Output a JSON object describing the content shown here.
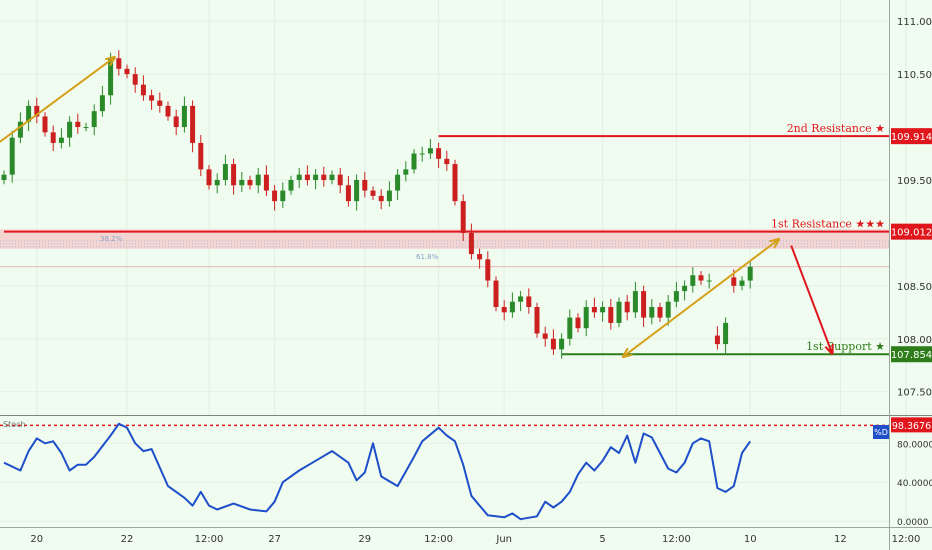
{
  "chart_data": [
    {
      "type": "candlestick",
      "y_axis": {
        "range": [
          107.28,
          111.2
        ],
        "ticks": [
          {
            "value": 111.0,
            "label": "111.000"
          },
          {
            "value": 110.5,
            "label": "110.500"
          },
          {
            "value": 109.5,
            "label": "109.500"
          },
          {
            "value": 108.5,
            "label": "108.500"
          },
          {
            "value": 108.0,
            "label": "108.000"
          },
          {
            "value": 107.5,
            "label": "107.500"
          }
        ]
      },
      "x_axis": {
        "ticks": [
          {
            "i": 4,
            "label": "20"
          },
          {
            "i": 15,
            "label": "22"
          },
          {
            "i": 25,
            "label": "12:00"
          },
          {
            "i": 33,
            "label": "27"
          },
          {
            "i": 44,
            "label": "29"
          },
          {
            "i": 53,
            "label": "12:00"
          },
          {
            "i": 61,
            "label": "Jun"
          },
          {
            "i": 73,
            "label": "5"
          },
          {
            "i": 82,
            "label": "12:00"
          },
          {
            "i": 91,
            "label": "10"
          },
          {
            "i": 102,
            "label": "12"
          },
          {
            "i": 110,
            "label": "12:00"
          }
        ]
      },
      "series": [
        {
          "close": [
            109.55,
            109.9,
            110.05,
            110.2,
            110.1,
            109.95,
            109.85,
            109.9,
            110.05,
            110.0,
            110.0,
            110.15,
            110.3,
            110.65,
            110.55,
            110.5,
            110.4,
            110.3,
            110.25,
            110.2,
            110.1,
            110.0,
            110.2,
            109.85,
            109.6,
            109.45,
            109.5,
            109.65,
            109.45,
            109.5,
            109.45,
            109.55,
            109.4,
            109.3,
            109.4,
            109.5,
            109.55,
            109.5,
            109.55,
            109.5,
            109.55,
            109.45,
            109.3,
            109.5,
            109.4,
            109.35,
            109.3,
            109.4,
            109.55,
            109.6,
            109.75,
            109.75,
            109.8,
            109.7,
            109.65,
            109.3,
            109.0,
            108.8,
            108.75,
            108.55,
            108.3,
            108.25,
            108.35,
            108.4,
            108.3,
            108.05,
            108.0,
            107.9,
            108.0,
            108.2,
            108.1,
            108.3,
            108.25,
            108.3,
            108.15,
            108.35,
            108.25,
            108.45,
            108.2,
            108.3,
            108.2,
            108.35,
            108.45,
            108.5,
            108.6,
            108.55,
            108.55,
            107.95,
            108.15,
            108.5,
            108.55,
            108.68
          ],
          "gaps_after": [
            86,
            88
          ]
        }
      ],
      "price_lines": [
        {
          "name": "2nd Resistance ★",
          "value": 109.914,
          "label": "109.914",
          "color": "#e0161d",
          "from_i": 53
        },
        {
          "name": "1st Resistance ★★★",
          "value": 109.012,
          "label": "109.012",
          "color": "#e0161d",
          "from_i": 0
        },
        {
          "name": "1st Support ★",
          "value": 107.854,
          "label": "107.854",
          "color": "#2e7d1a",
          "from_i": 68
        }
      ],
      "resistance_zone": [
        108.85,
        109.035
      ],
      "annotations": {
        "fib_labels": [
          "38.2%",
          "61.8%"
        ],
        "arrows": [
          {
            "color": "#d4a017",
            "from": [
              -0.5,
              109.86
            ],
            "to": [
              13.5,
              110.66
            ],
            "head": "end"
          },
          {
            "color": "#d4a017",
            "from": [
              75.5,
              107.83
            ],
            "to": [
              94.5,
              108.94
            ],
            "head": "both"
          },
          {
            "color": "#e0161d",
            "from": [
              96,
              108.88
            ],
            "to": [
              101,
              107.86
            ],
            "head": "end"
          }
        ]
      }
    },
    {
      "type": "line",
      "title": "Stoch",
      "y_axis": {
        "range": [
          -6,
          108
        ],
        "ticks": [
          {
            "value": 80,
            "label": "80.0000"
          },
          {
            "value": 40,
            "label": "40.0000"
          },
          {
            "value": 0,
            "label": "0.0000"
          }
        ]
      },
      "level_line": {
        "value": 98.3676,
        "label": "98.3676"
      },
      "legend_badge": "%D",
      "series": [
        {
          "name": "%D",
          "color": "#1e4fc9",
          "points": [
            [
              0,
              60
            ],
            [
              2,
              52
            ],
            [
              3,
              72
            ],
            [
              4,
              85
            ],
            [
              5,
              80
            ],
            [
              6,
              82
            ],
            [
              7,
              70
            ],
            [
              8,
              52
            ],
            [
              9,
              58
            ],
            [
              10,
              58
            ],
            [
              11,
              66
            ],
            [
              13,
              88
            ],
            [
              14,
              100
            ],
            [
              15,
              96
            ],
            [
              16,
              80
            ],
            [
              17,
              72
            ],
            [
              18,
              74
            ],
            [
              20,
              36
            ],
            [
              22,
              24
            ],
            [
              23,
              16
            ],
            [
              24,
              30
            ],
            [
              25,
              16
            ],
            [
              26,
              12
            ],
            [
              28,
              18
            ],
            [
              30,
              12
            ],
            [
              32,
              10
            ],
            [
              33,
              20
            ],
            [
              34,
              40
            ],
            [
              36,
              52
            ],
            [
              38,
              62
            ],
            [
              40,
              72
            ],
            [
              42,
              60
            ],
            [
              43,
              42
            ],
            [
              44,
              50
            ],
            [
              45,
              80
            ],
            [
              46,
              46
            ],
            [
              48,
              36
            ],
            [
              50,
              66
            ],
            [
              51,
              82
            ],
            [
              53,
              96
            ],
            [
              54,
              88
            ],
            [
              55,
              82
            ],
            [
              56,
              58
            ],
            [
              57,
              26
            ],
            [
              58,
              16
            ],
            [
              59,
              6
            ],
            [
              61,
              4
            ],
            [
              62,
              8
            ],
            [
              63,
              2
            ],
            [
              65,
              5
            ],
            [
              66,
              20
            ],
            [
              67,
              14
            ],
            [
              68,
              20
            ],
            [
              69,
              30
            ],
            [
              70,
              48
            ],
            [
              71,
              60
            ],
            [
              72,
              52
            ],
            [
              73,
              62
            ],
            [
              74,
              76
            ],
            [
              75,
              70
            ],
            [
              76,
              88
            ],
            [
              77,
              60
            ],
            [
              78,
              90
            ],
            [
              79,
              86
            ],
            [
              81,
              54
            ],
            [
              82,
              50
            ],
            [
              83,
              60
            ],
            [
              84,
              80
            ],
            [
              85,
              85
            ],
            [
              86,
              82
            ],
            [
              87,
              34
            ],
            [
              88,
              30
            ],
            [
              89,
              36
            ],
            [
              90,
              70
            ],
            [
              91,
              82
            ]
          ]
        }
      ]
    }
  ]
}
